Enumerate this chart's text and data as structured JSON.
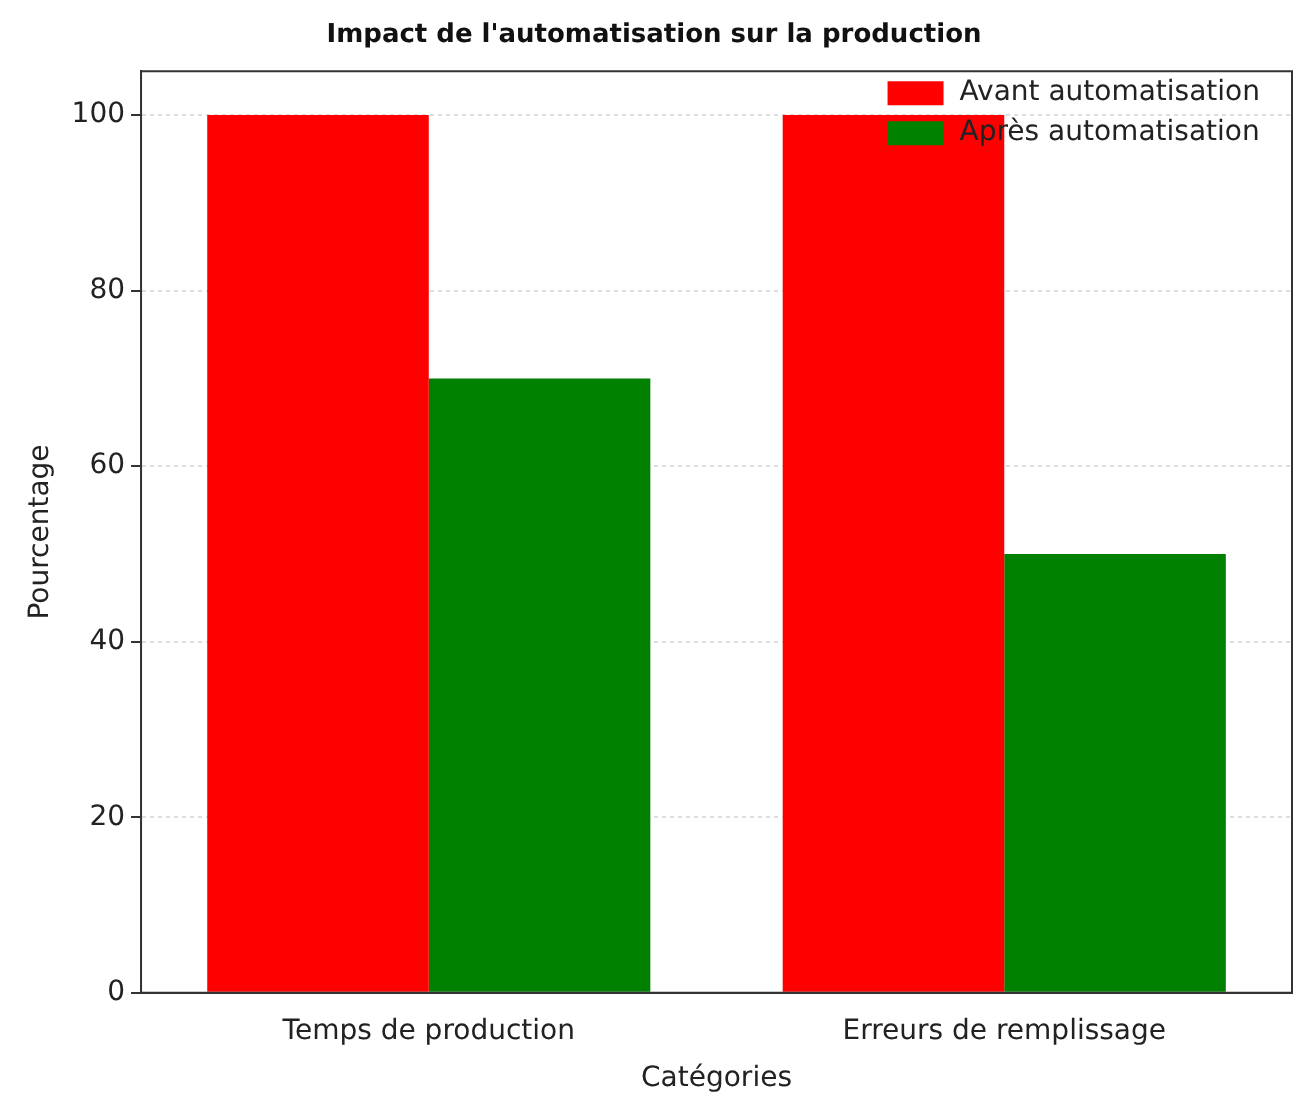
{
  "chart_data": {
    "type": "bar",
    "title": "Impact de l'automatisation sur la production",
    "xlabel": "Catégories",
    "ylabel": "Pourcentage",
    "categories": [
      "Temps de production",
      "Erreurs de remplissage"
    ],
    "series": [
      {
        "name": "Avant automatisation",
        "color": "#ff0000",
        "values": [
          100,
          100
        ]
      },
      {
        "name": "Après automatisation",
        "color": "#008000",
        "values": [
          70,
          50
        ]
      }
    ],
    "ylim": [
      0,
      105
    ],
    "yticks": [
      0,
      20,
      40,
      60,
      80,
      100
    ],
    "grid": "y",
    "legend": "top right"
  }
}
